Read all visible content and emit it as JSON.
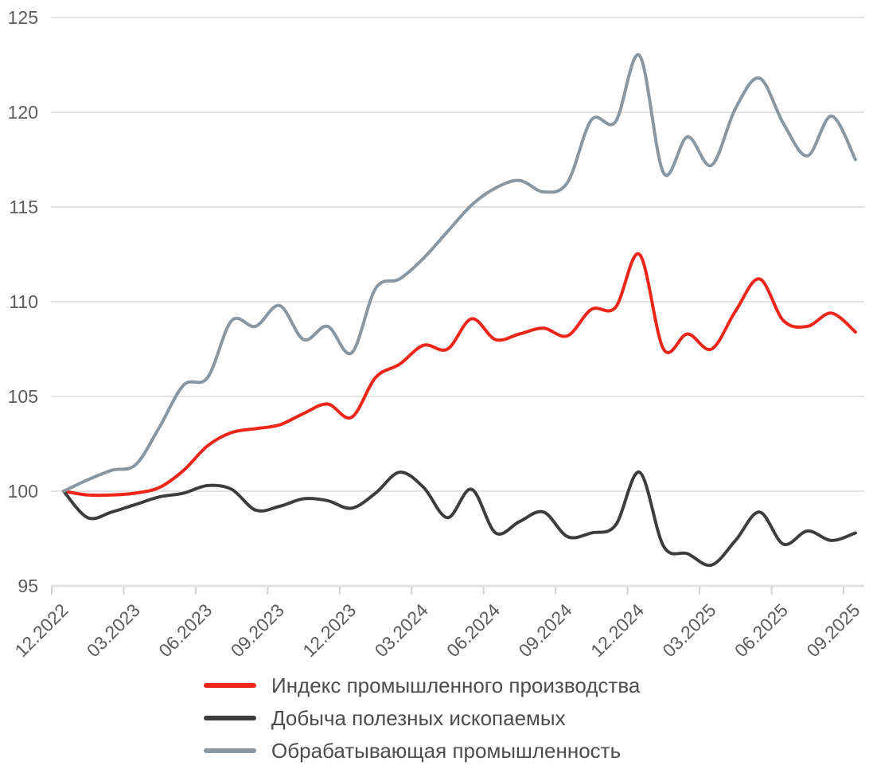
{
  "chart_data": {
    "type": "line",
    "title": "",
    "xlabel": "",
    "ylabel": "",
    "x_unit": "month",
    "points_per_series": 34,
    "x_range": [
      "12.2022",
      "09.2025"
    ],
    "x_tick_labels": [
      "12.2022",
      "03.2023",
      "06.2023",
      "09.2023",
      "12.2023",
      "03.2024",
      "06.2024",
      "09.2024",
      "12.2024",
      "03.2025",
      "06.2025",
      "09.2025"
    ],
    "y_tick_labels": [
      "125",
      "120",
      "115",
      "110",
      "105",
      "100",
      "95"
    ],
    "y_tick_values": [
      125,
      120,
      115,
      110,
      105,
      100,
      95
    ],
    "ylim": [
      95,
      125
    ],
    "grid": "horizontal",
    "legend_position": "bottom",
    "smooth": true,
    "series": [
      {
        "name": "Индекс промышленного производства",
        "color": "#ed2619",
        "values": [
          100,
          99.8,
          99.8,
          99.9,
          100.2,
          101.1,
          102.4,
          103.1,
          103.3,
          103.5,
          104.1,
          104.6,
          103.9,
          106.0,
          106.7,
          107.7,
          107.5,
          109.1,
          108.0,
          108.3,
          108.6,
          108.2,
          109.6,
          109.7,
          112.5,
          107.5,
          108.3,
          107.5,
          109.5,
          111.2,
          109.0,
          108.7,
          109.4,
          108.4
        ]
      },
      {
        "name": "Добыча полезных ископаемых",
        "color": "#3d3d3d",
        "values": [
          100,
          98.6,
          98.9,
          99.3,
          99.7,
          99.9,
          100.3,
          100.1,
          99.0,
          99.2,
          99.6,
          99.5,
          99.1,
          99.9,
          101.0,
          100.2,
          98.6,
          100.1,
          97.8,
          98.4,
          98.9,
          97.6,
          97.8,
          98.2,
          101.0,
          97.1,
          96.7,
          96.1,
          97.4,
          98.9,
          97.2,
          97.9,
          97.4,
          97.8
        ]
      },
      {
        "name": "Обрабатывающая промышленность",
        "color": "#8997a2",
        "values": [
          100,
          100.6,
          101.1,
          101.4,
          103.4,
          105.6,
          106.0,
          109.0,
          108.7,
          109.8,
          108.0,
          108.7,
          107.3,
          110.7,
          111.2,
          112.3,
          113.7,
          115.1,
          116.0,
          116.4,
          115.8,
          116.3,
          119.6,
          119.5,
          123.0,
          116.8,
          118.7,
          117.2,
          120.2,
          121.8,
          119.4,
          117.7,
          119.8,
          117.5
        ]
      }
    ],
    "colors": {
      "background": "#ffffff",
      "grid": "#e3e3e3",
      "axis_tick": "#d2d2d2",
      "axis_label": "#5c5c5c",
      "legend_label": "#4d4d4d"
    }
  }
}
